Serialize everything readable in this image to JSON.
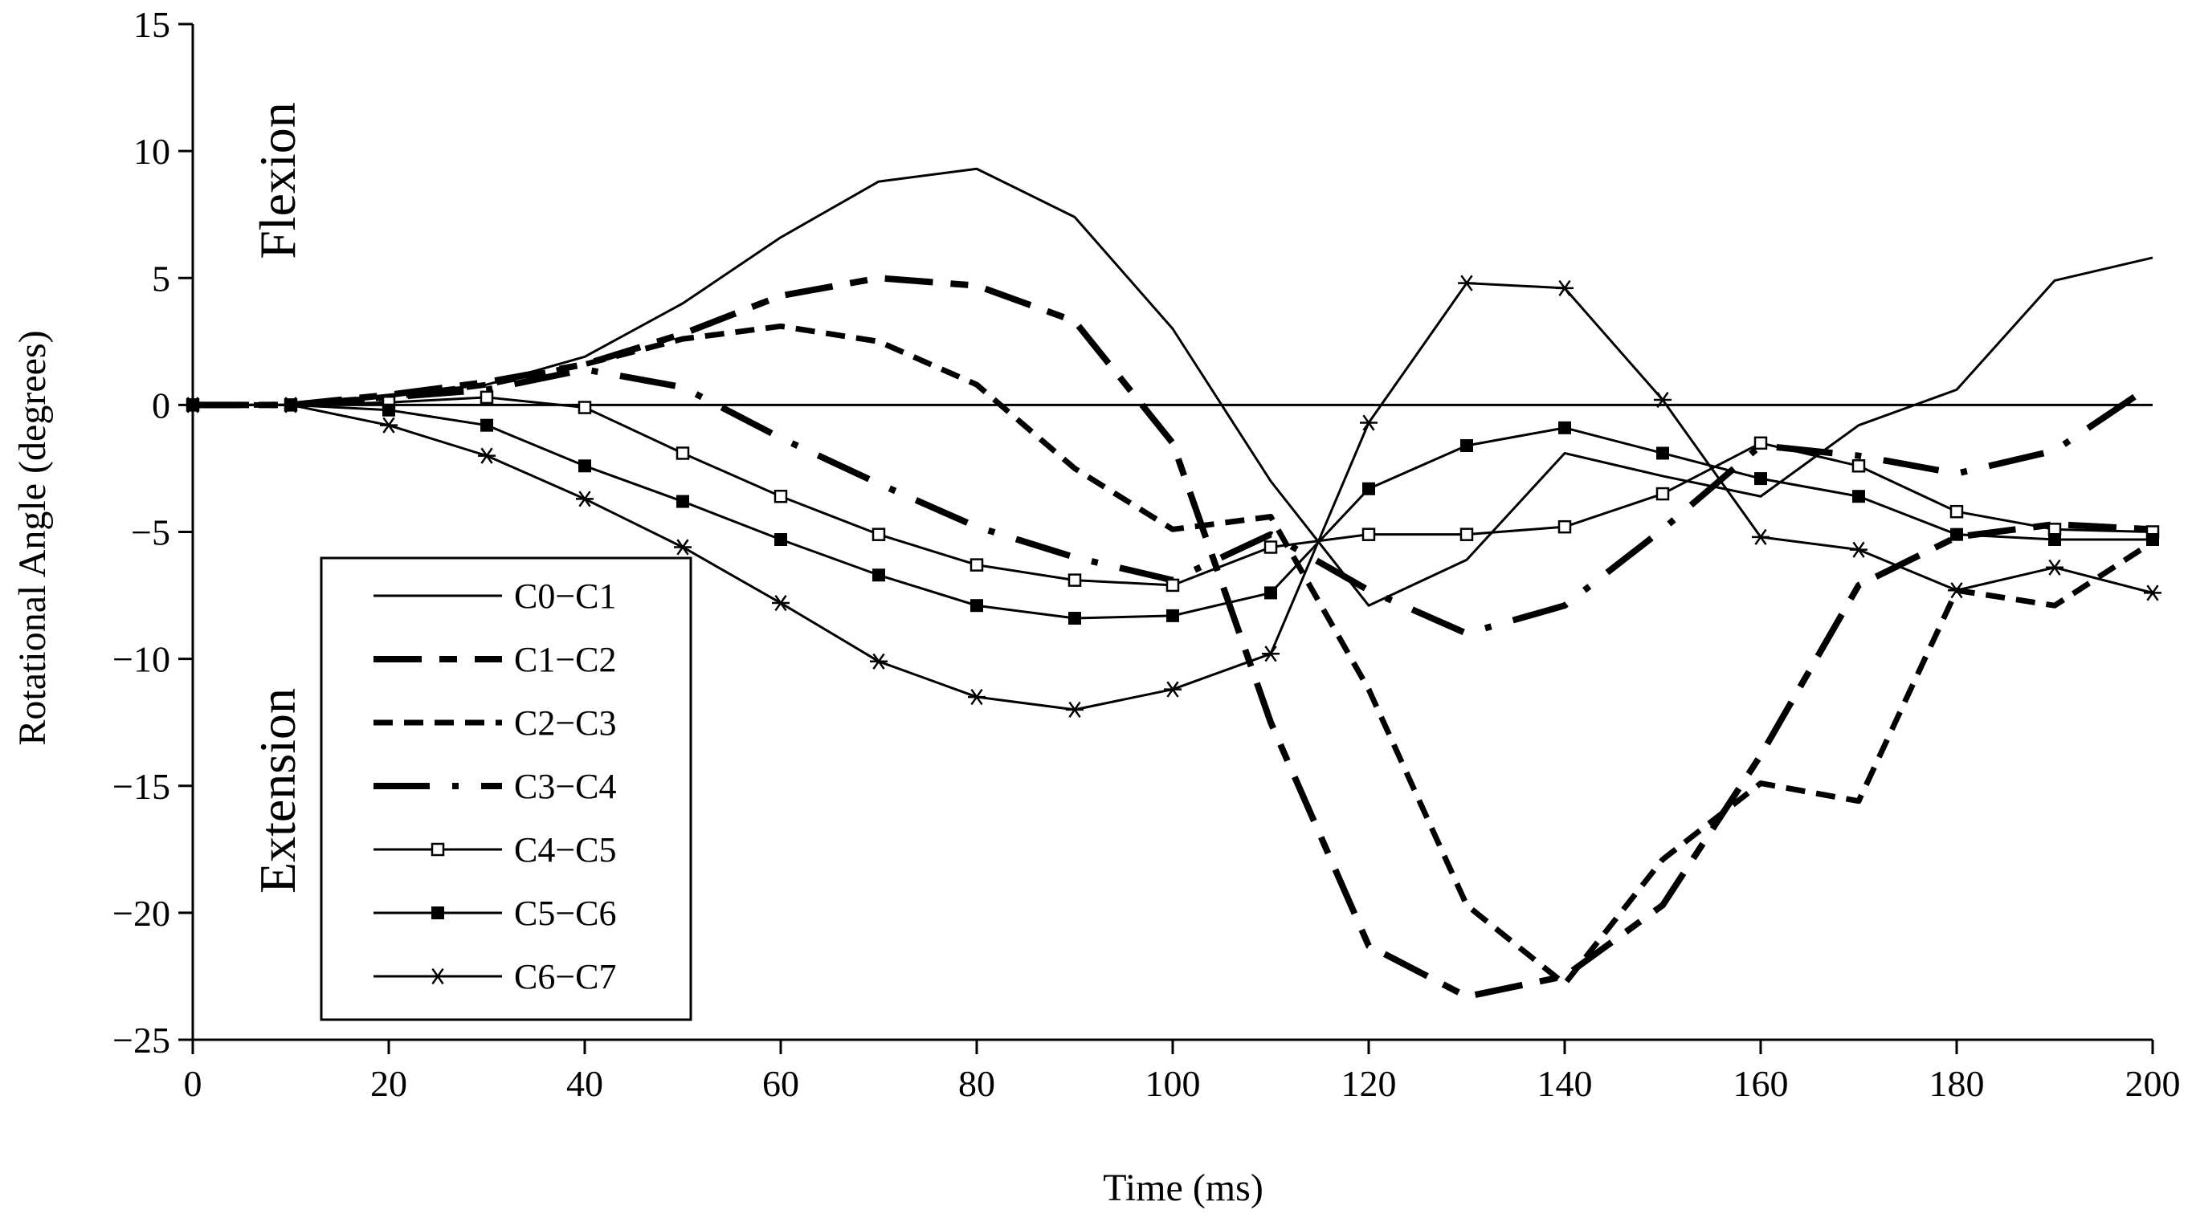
{
  "chart_data": {
    "type": "line",
    "title": "",
    "xlabel": "Time (ms)",
    "ylabel": "Rotational Angle (degrees)",
    "xlim": [
      0,
      200
    ],
    "ylim": [
      -25,
      15
    ],
    "xticks": [
      0,
      20,
      40,
      60,
      80,
      100,
      120,
      140,
      160,
      180,
      200
    ],
    "yticks": [
      15,
      10,
      5,
      0,
      -5,
      -10,
      -15,
      -20,
      -25
    ],
    "ytick_labels": [
      "15",
      "10",
      "5",
      "0",
      "−5",
      "−10",
      "−15",
      "−20",
      "−25"
    ],
    "grid": false,
    "zero_line": true,
    "legend_position": "lower-left",
    "annotations": [
      {
        "text": "Flexion",
        "region": "upper-left"
      },
      {
        "text": "Extension",
        "region": "lower-left"
      }
    ],
    "x": [
      0,
      10,
      20,
      30,
      40,
      50,
      60,
      70,
      80,
      90,
      100,
      110,
      120,
      130,
      140,
      150,
      160,
      170,
      180,
      190,
      200
    ],
    "series": [
      {
        "name": "C0−C1",
        "style": "solid-thin",
        "marker": "none",
        "values": [
          0,
          0,
          0.4,
          0.8,
          1.9,
          4.0,
          6.6,
          8.8,
          9.3,
          7.4,
          3.0,
          -3.0,
          -7.9,
          -6.1,
          -1.9,
          -2.8,
          -3.6,
          -0.8,
          0.6,
          4.9,
          5.8
        ]
      },
      {
        "name": "C1−C2",
        "style": "long-dash-short-dash",
        "marker": "none",
        "values": [
          0,
          0,
          0.4,
          0.9,
          1.6,
          2.8,
          4.3,
          5.0,
          4.7,
          3.3,
          -1.5,
          -12.5,
          -21.3,
          -23.3,
          -22.5,
          -19.7,
          -13.8,
          -7.1,
          -5.2,
          -4.7,
          -4.9
        ]
      },
      {
        "name": "C2−C3",
        "style": "short-dash",
        "marker": "none",
        "values": [
          0,
          0,
          0.3,
          0.8,
          1.6,
          2.6,
          3.1,
          2.5,
          0.8,
          -2.5,
          -4.9,
          -4.4,
          -11.2,
          -19.7,
          -22.8,
          -17.9,
          -14.9,
          -15.6,
          -7.3,
          -7.9,
          -5.4
        ]
      },
      {
        "name": "C3−C4",
        "style": "dash-dot",
        "marker": "none",
        "values": [
          0,
          0,
          0.3,
          0.6,
          1.4,
          0.7,
          -1.3,
          -3.1,
          -4.8,
          -6.0,
          -6.9,
          -5.1,
          -7.3,
          -9.0,
          -7.9,
          -4.9,
          -1.6,
          -2.0,
          -2.7,
          -1.8,
          0.8
        ]
      },
      {
        "name": "C4−C5",
        "style": "solid-thin",
        "marker": "open-square",
        "values": [
          0,
          0,
          0.1,
          0.3,
          -0.1,
          -1.9,
          -3.6,
          -5.1,
          -6.3,
          -6.9,
          -7.1,
          -5.6,
          -5.1,
          -5.1,
          -4.8,
          -3.5,
          -1.5,
          -2.4,
          -4.2,
          -4.9,
          -5.0
        ]
      },
      {
        "name": "C5−C6",
        "style": "solid-thin",
        "marker": "filled-square",
        "values": [
          0,
          0,
          -0.2,
          -0.8,
          -2.4,
          -3.8,
          -5.3,
          -6.7,
          -7.9,
          -8.4,
          -8.3,
          -7.4,
          -3.3,
          -1.6,
          -0.9,
          -1.9,
          -2.9,
          -3.6,
          -5.1,
          -5.3,
          -5.3
        ]
      },
      {
        "name": "C6−C7",
        "style": "solid-thin",
        "marker": "asterisk",
        "values": [
          0,
          0,
          -0.8,
          -2.0,
          -3.7,
          -5.6,
          -7.8,
          -10.1,
          -11.5,
          -12.0,
          -11.2,
          -9.8,
          -0.7,
          4.8,
          4.6,
          0.2,
          -5.2,
          -5.7,
          -7.3,
          -6.4,
          -7.4
        ]
      }
    ]
  }
}
